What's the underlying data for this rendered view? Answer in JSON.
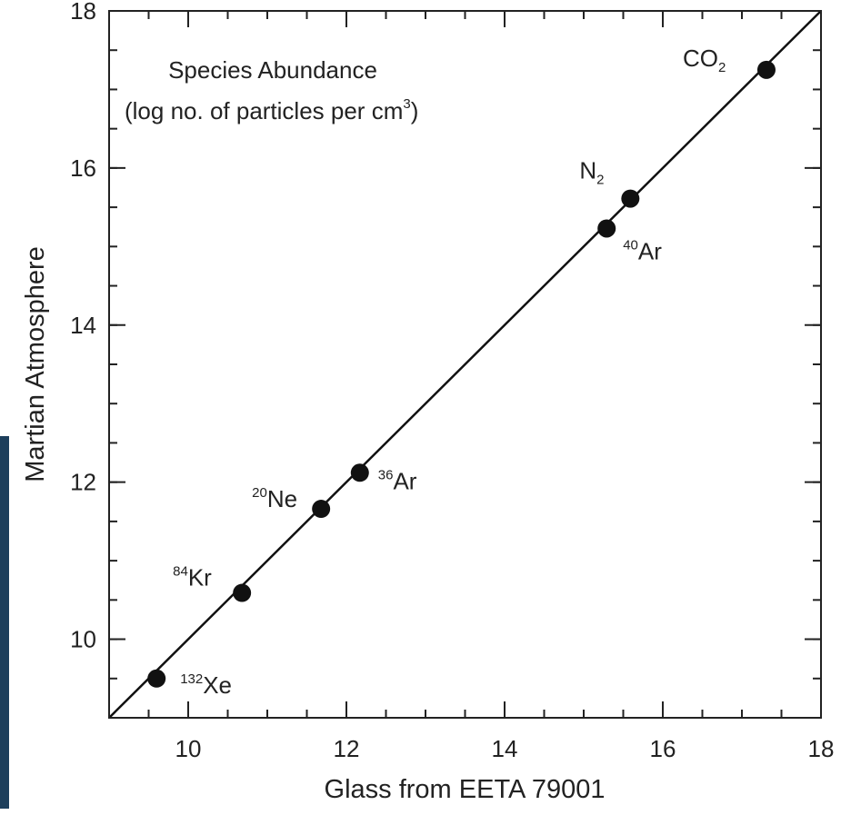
{
  "chart_data": {
    "type": "scatter",
    "x_label": "Glass from EETA 79001",
    "y_label": "Martian Atmosphere",
    "annotation": {
      "line1": "Species Abundance",
      "line2": {
        "text": "(log no. of particles per cm",
        "sup": "3",
        "end": ")"
      }
    },
    "xlim": [
      9,
      18
    ],
    "ylim": [
      9,
      18
    ],
    "xticks": [
      10,
      12,
      14,
      16,
      18
    ],
    "yticks": [
      10,
      12,
      14,
      16,
      18
    ],
    "color": "#111111",
    "series": [
      {
        "x": [
          17.31,
          15.59,
          15.29,
          12.17,
          11.68,
          10.68,
          9.6
        ],
        "values": [
          17.25,
          15.61,
          15.23,
          12.12,
          11.66,
          10.59,
          9.5
        ],
        "labels": [
          {
            "text": "CO",
            "sub": "2"
          },
          {
            "text": "N",
            "sub": "2"
          },
          {
            "sup": "40",
            "text": "Ar"
          },
          {
            "sup": "36",
            "text": "Ar"
          },
          {
            "sup": "20",
            "text": "Ne"
          },
          {
            "sup": "84",
            "text": "Kr"
          },
          {
            "sup": "132",
            "text": "Xe"
          }
        ]
      }
    ]
  }
}
